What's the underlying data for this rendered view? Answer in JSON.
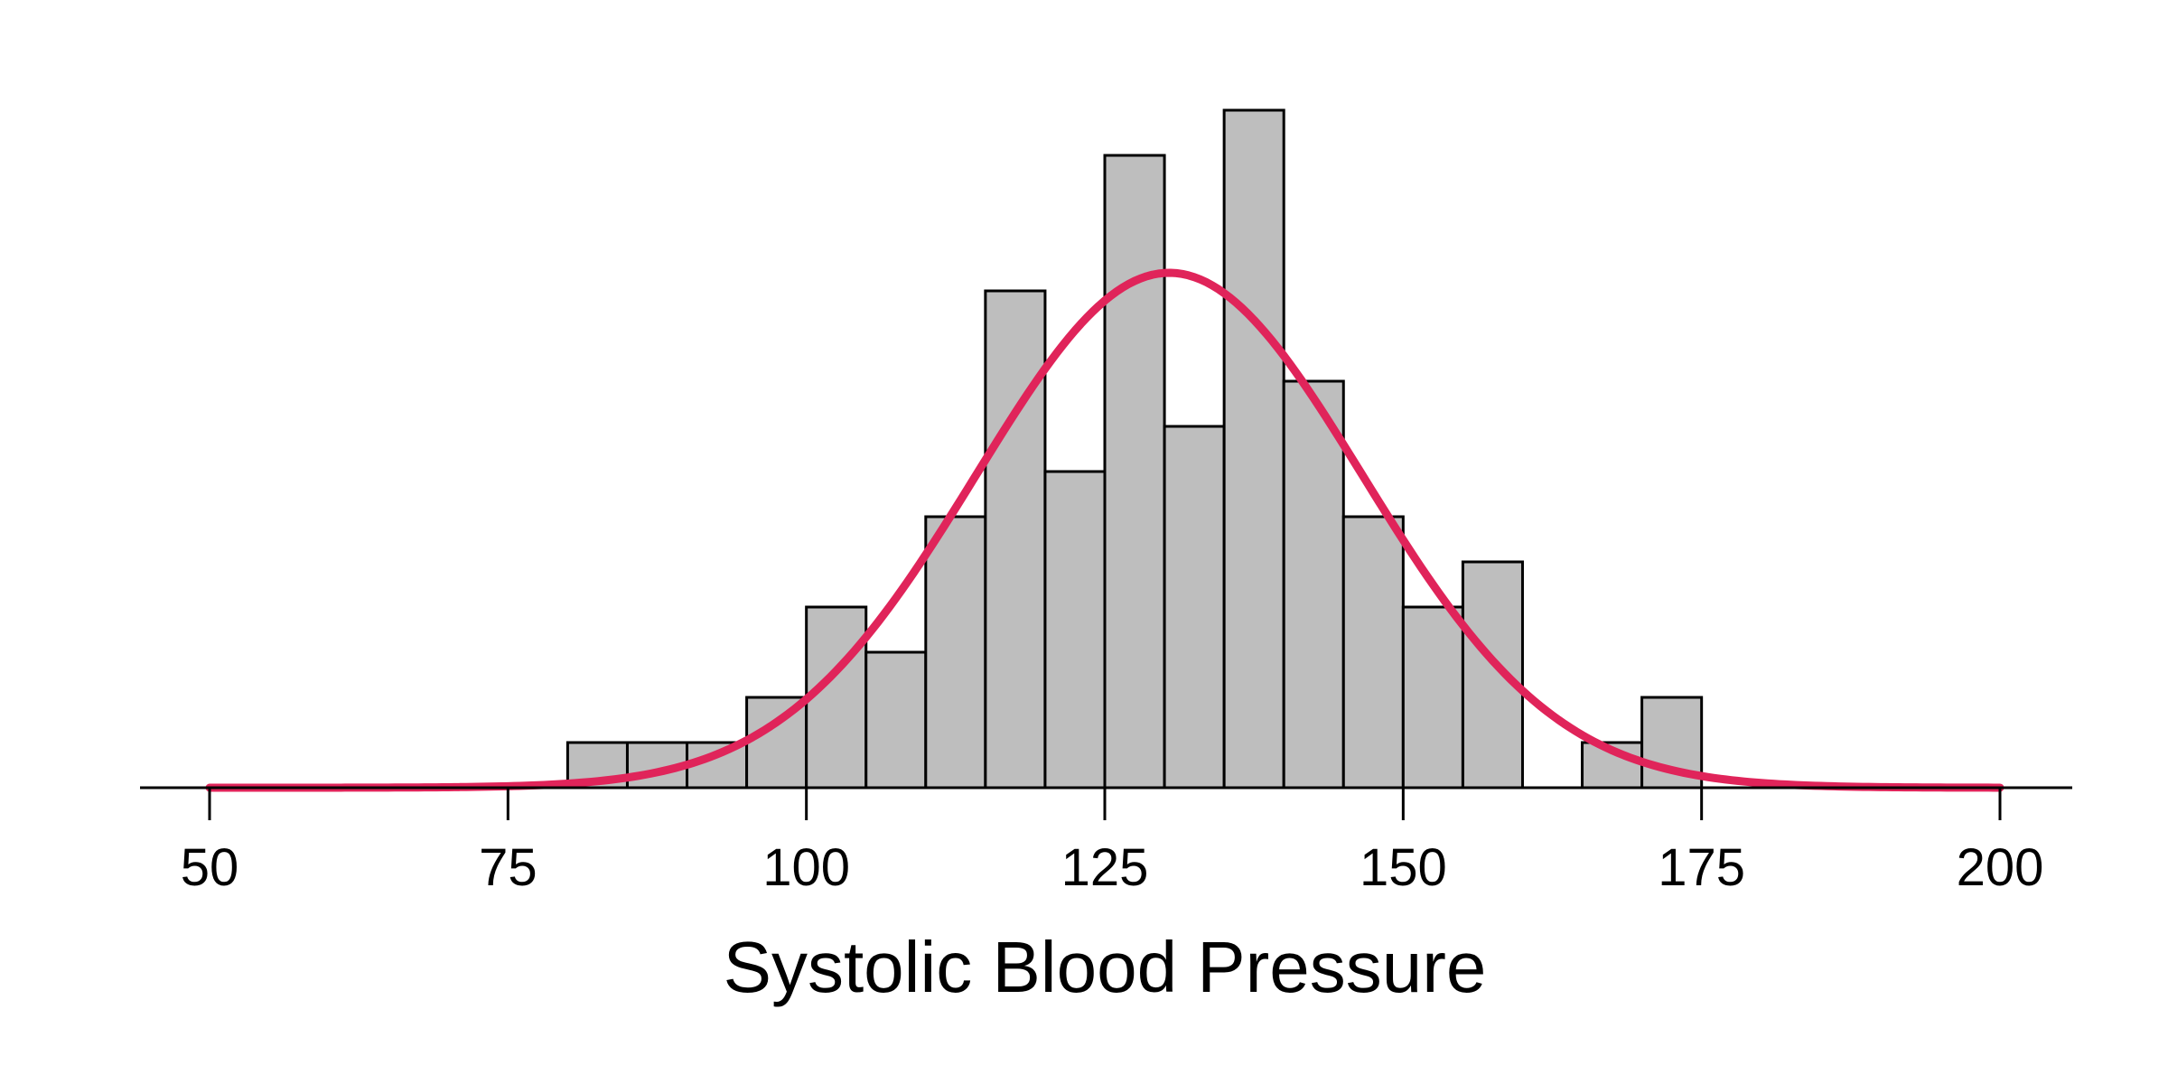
{
  "chart_data": {
    "type": "bar",
    "subtype": "histogram",
    "title": "",
    "xlabel": "Systolic Blood Pressure",
    "ylabel": "",
    "xlim": [
      50,
      200
    ],
    "x_ticks": [
      50,
      75,
      100,
      125,
      150,
      175,
      200
    ],
    "x_tick_labels": [
      "50",
      "75",
      "100",
      "125",
      "150",
      "175",
      "200"
    ],
    "bin_width": 5,
    "bins": [
      {
        "start": 80,
        "end": 85,
        "count": 1
      },
      {
        "start": 85,
        "end": 90,
        "count": 1
      },
      {
        "start": 90,
        "end": 95,
        "count": 1
      },
      {
        "start": 95,
        "end": 100,
        "count": 2
      },
      {
        "start": 100,
        "end": 105,
        "count": 4
      },
      {
        "start": 105,
        "end": 110,
        "count": 3
      },
      {
        "start": 110,
        "end": 115,
        "count": 6
      },
      {
        "start": 115,
        "end": 120,
        "count": 11
      },
      {
        "start": 120,
        "end": 125,
        "count": 7
      },
      {
        "start": 125,
        "end": 130,
        "count": 14
      },
      {
        "start": 130,
        "end": 135,
        "count": 8
      },
      {
        "start": 135,
        "end": 140,
        "count": 15
      },
      {
        "start": 140,
        "end": 145,
        "count": 9
      },
      {
        "start": 145,
        "end": 150,
        "count": 6
      },
      {
        "start": 150,
        "end": 155,
        "count": 4
      },
      {
        "start": 155,
        "end": 160,
        "count": 5
      },
      {
        "start": 160,
        "end": 165,
        "count": 0
      },
      {
        "start": 165,
        "end": 170,
        "count": 1
      },
      {
        "start": 170,
        "end": 175,
        "count": 2
      }
    ],
    "overlay": {
      "type": "normal density",
      "mean": 130.4,
      "sd": 16.2,
      "peak_count": 11.4,
      "x_range": [
        50,
        200
      ],
      "color": "#e0245a"
    },
    "bar_color": "#bebebe",
    "bar_edge_color": "#000000",
    "grid": false,
    "legend": "none"
  }
}
